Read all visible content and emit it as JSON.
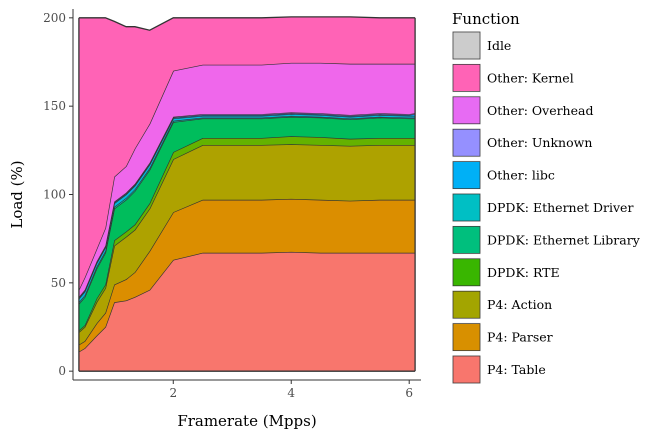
{
  "chart_data": {
    "type": "area",
    "stacked": true,
    "xlabel": "Framerate (Mpps)",
    "ylabel": "Load (%)",
    "xlim": [
      0.3,
      6.2
    ],
    "ylim": [
      -5,
      205
    ],
    "xticks": [
      2,
      4,
      6
    ],
    "yticks": [
      0,
      50,
      100,
      150,
      200
    ],
    "grid": false,
    "legend_title": "Function",
    "legend_position": "right",
    "x": [
      0.4,
      0.5,
      0.7,
      0.85,
      1.0,
      1.2,
      1.35,
      1.6,
      2.0,
      2.5,
      3.0,
      3.5,
      4.0,
      4.5,
      5.0,
      5.5,
      6.0,
      6.1
    ],
    "series": [
      {
        "name": "P4: Table",
        "color": "#F8766D",
        "values": [
          11,
          13,
          20,
          25,
          39,
          40,
          42,
          46,
          63,
          67,
          67,
          67,
          67.5,
          67,
          67,
          67,
          67,
          67
        ]
      },
      {
        "name": "P4: Parser",
        "color": "#DB8E00",
        "values": [
          4,
          4,
          7,
          8,
          10,
          12,
          14,
          22,
          27,
          30,
          30,
          30,
          30,
          30,
          29.5,
          30,
          30,
          30
        ]
      },
      {
        "name": "P4: Action",
        "color": "#AEA200",
        "values": [
          7,
          8,
          12,
          14,
          22,
          24,
          24,
          24,
          30,
          31,
          31,
          31,
          31,
          31,
          31,
          31,
          31,
          31
        ]
      },
      {
        "name": "DPDK: RTE",
        "color": "#64B200",
        "values": [
          1,
          1,
          2,
          2,
          3,
          3,
          3,
          3,
          4,
          4,
          4,
          4,
          4.5,
          4.5,
          4,
          4,
          4,
          4
        ]
      },
      {
        "name": "DPDK: Ethernet Library",
        "color": "#00BD5C",
        "values": [
          15,
          16,
          17,
          18,
          18,
          18,
          19,
          19,
          17,
          11,
          11,
          11,
          11,
          11,
          11,
          11.5,
          11,
          11
        ]
      },
      {
        "name": "DPDK: Ethernet Driver",
        "color": "#00C1A7",
        "values": [
          1,
          1,
          1,
          1,
          1,
          1,
          1,
          1,
          0.7,
          0.5,
          0.5,
          0.5,
          0.5,
          0.5,
          0.5,
          0.5,
          0.5,
          0.5
        ]
      },
      {
        "name": "Other: libc",
        "color": "#00BADE",
        "values": [
          2,
          2,
          2,
          2,
          2,
          2,
          2,
          2,
          1.3,
          1,
          1,
          1,
          1,
          1,
          1,
          1,
          1,
          1
        ]
      },
      {
        "name": "Other: Unknown",
        "color": "#00A6FF",
        "values": [
          0.5,
          0.5,
          0.5,
          0.5,
          0.5,
          0.5,
          0.5,
          0.5,
          0.5,
          0.5,
          0.5,
          0.5,
          0.5,
          0.5,
          0.5,
          0.5,
          0.5,
          1
        ]
      },
      {
        "name": "Other: Overhead",
        "color": "#B385FF",
        "values": [
          0.5,
          0.5,
          0.5,
          0.5,
          0.5,
          0.5,
          0.5,
          0.5,
          0.5,
          0.5,
          0.5,
          0.5,
          0.5,
          0.5,
          0.5,
          0.5,
          0.5,
          0.5
        ]
      },
      {
        "name": "Other: Kernel",
        "color": "#EF67EB",
        "values": [
          4,
          7,
          7,
          10,
          14,
          15,
          20,
          22,
          26,
          28,
          28,
          28,
          28,
          28.5,
          29,
          28,
          28.5,
          28
        ]
      },
      {
        "name": "Idle",
        "color": "#FF63B6",
        "values": [
          154,
          147,
          131,
          119,
          88,
          79,
          69,
          53,
          30,
          26.5,
          26.5,
          26.5,
          26,
          26,
          26.5,
          26,
          26,
          26
        ]
      }
    ]
  },
  "legend_order": [
    {
      "name": "Idle",
      "color": "#CCCCCC"
    },
    {
      "name": "Other: Kernel",
      "color": "#FF63B6"
    },
    {
      "name": "Other: Overhead",
      "color": "#E76BF3"
    },
    {
      "name": "Other: Unknown",
      "color": "#9590FF"
    },
    {
      "name": "Other: libc",
      "color": "#00B0F6"
    },
    {
      "name": "DPDK: Ethernet Driver",
      "color": "#00BFC4"
    },
    {
      "name": "DPDK: Ethernet Library",
      "color": "#00BF7D"
    },
    {
      "name": "DPDK: RTE",
      "color": "#39B600"
    },
    {
      "name": "P4: Action",
      "color": "#A3A500"
    },
    {
      "name": "P4: Parser",
      "color": "#D89000"
    },
    {
      "name": "P4: Table",
      "color": "#F8766D"
    }
  ]
}
